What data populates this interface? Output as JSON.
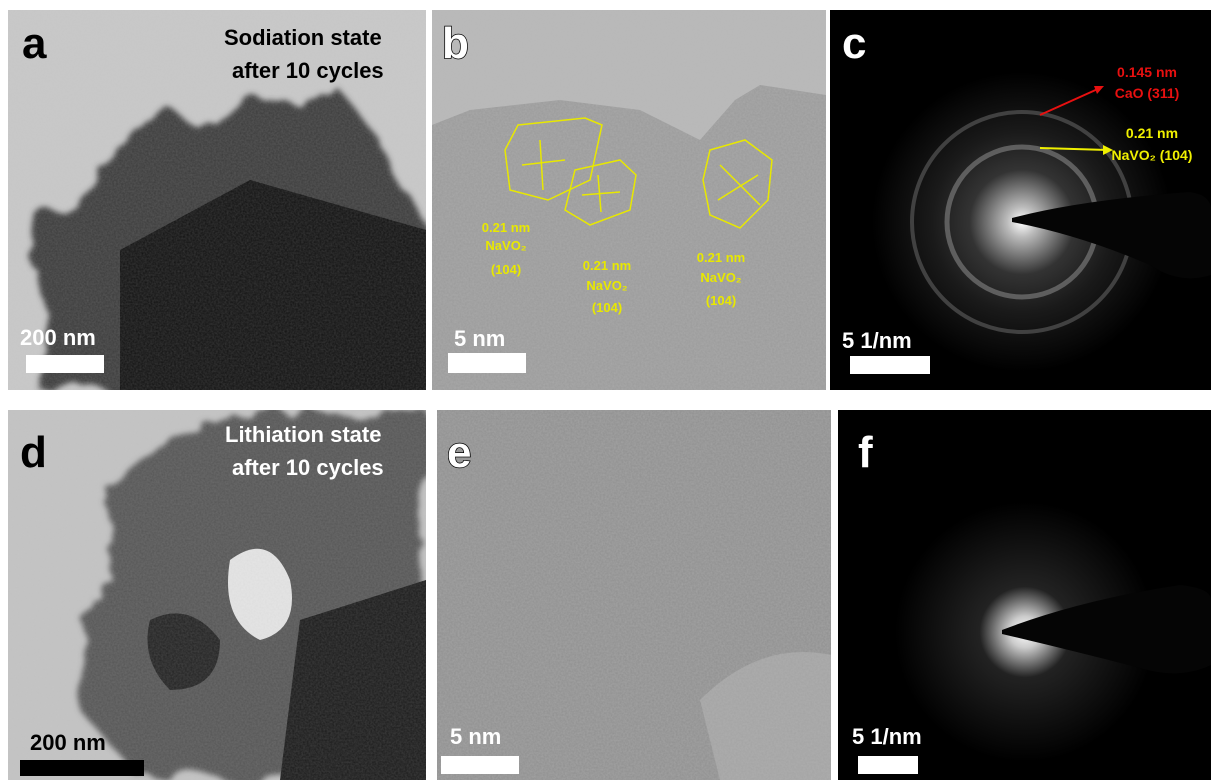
{
  "panels": [
    {
      "label": "a",
      "caption": [
        "Sodiation state",
        "after 10 cycles"
      ],
      "scale_bar": "200 nm"
    },
    {
      "label": "b",
      "annotations": [
        [
          "0.21 nm",
          "NaVO₂",
          "(104)"
        ],
        [
          "0.21 nm",
          "NaVO₂",
          "(104)"
        ],
        [
          "0.21 nm",
          "NaVO₂",
          "(104)"
        ]
      ],
      "scale_bar": "5 nm"
    },
    {
      "label": "c",
      "annotations": [
        [
          "0.145 nm",
          "CaO (311)"
        ],
        [
          "0.21 nm",
          "NaVO₂ (104)"
        ]
      ],
      "scale_bar": "5 1/nm"
    },
    {
      "label": "d",
      "caption": [
        "Lithiation state",
        "after 10 cycles"
      ],
      "scale_bar": "200 nm"
    },
    {
      "label": "e",
      "scale_bar": "5 nm"
    },
    {
      "label": "f",
      "scale_bar": "5 1/nm"
    }
  ]
}
